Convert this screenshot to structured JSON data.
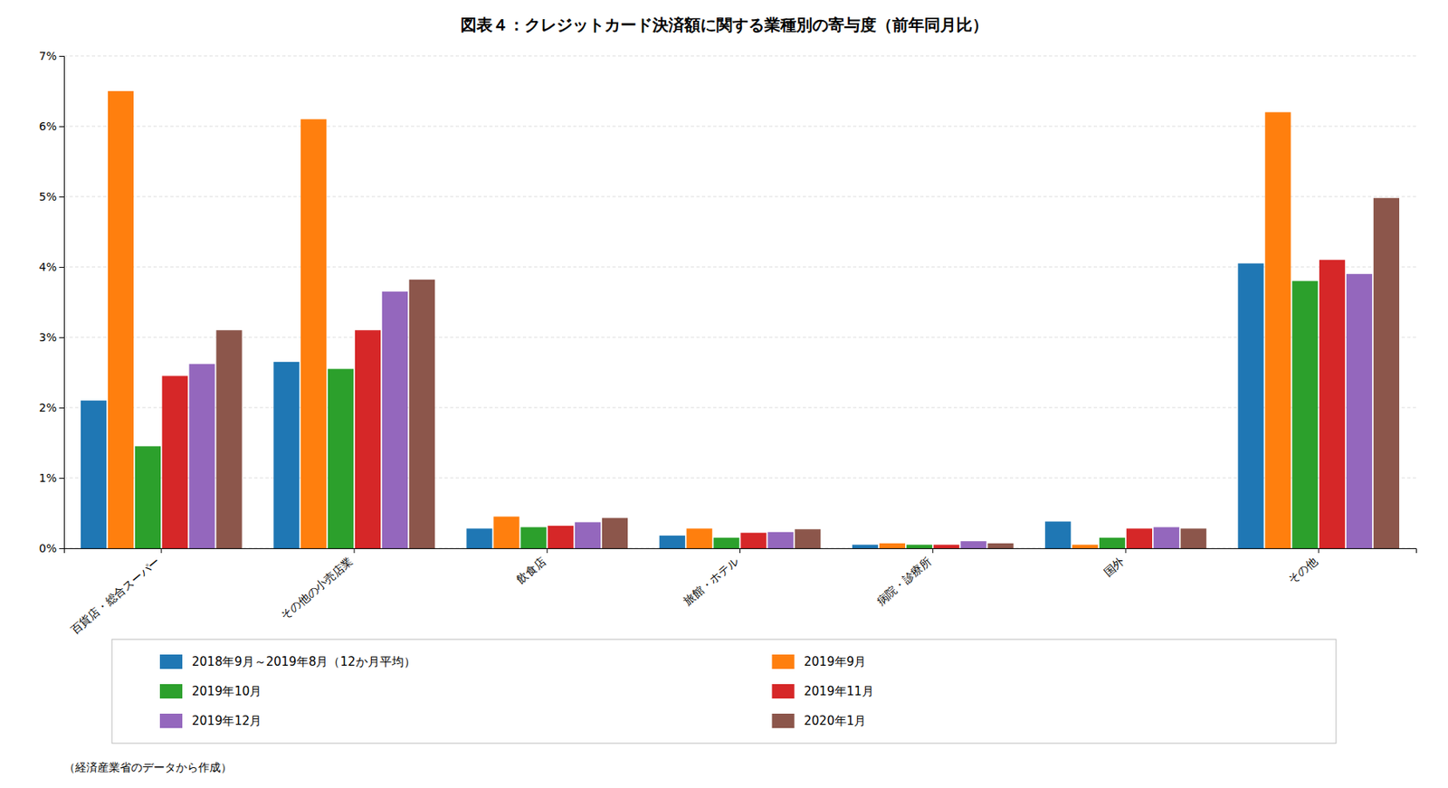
{
  "chart_data": {
    "type": "bar",
    "title": "図表４：クレジットカード決済額に関する業種別の寄与度（前年同月比）",
    "footnote": "（経済産業省のデータから作成）",
    "categories": [
      "百貨店・総合スーパー",
      "その他の小売店業",
      "飲食店",
      "旅館・ホテル",
      "病院・診療所",
      "国外",
      "その他"
    ],
    "series": [
      {
        "name": "2018年9月～2019年8月（12か月平均）",
        "values": [
          2.1,
          2.65,
          0.28,
          0.18,
          0.05,
          0.38,
          4.05
        ]
      },
      {
        "name": "2019年9月",
        "values": [
          6.5,
          6.1,
          0.45,
          0.28,
          0.07,
          0.05,
          6.2
        ]
      },
      {
        "name": "2019年10月",
        "values": [
          1.45,
          2.55,
          0.3,
          0.15,
          0.05,
          0.15,
          3.8
        ]
      },
      {
        "name": "2019年11月",
        "values": [
          2.45,
          3.1,
          0.32,
          0.22,
          0.05,
          0.28,
          4.1
        ]
      },
      {
        "name": "2019年12月",
        "values": [
          2.62,
          3.65,
          0.37,
          0.23,
          0.1,
          0.3,
          3.9
        ]
      },
      {
        "name": "2020年1月",
        "values": [
          3.1,
          3.82,
          0.43,
          0.27,
          0.07,
          0.28,
          4.98
        ]
      }
    ],
    "ylim": [
      0,
      7
    ],
    "yticks": [
      {
        "value": 0,
        "label": "0%"
      },
      {
        "value": 1,
        "label": "1%"
      },
      {
        "value": 2,
        "label": "2%"
      },
      {
        "value": 3,
        "label": "3%"
      },
      {
        "value": 4,
        "label": "4%"
      },
      {
        "value": 5,
        "label": "5%"
      },
      {
        "value": 6,
        "label": "6%"
      },
      {
        "value": 7,
        "label": "7%"
      }
    ],
    "grid": true,
    "legend": "bottom"
  }
}
